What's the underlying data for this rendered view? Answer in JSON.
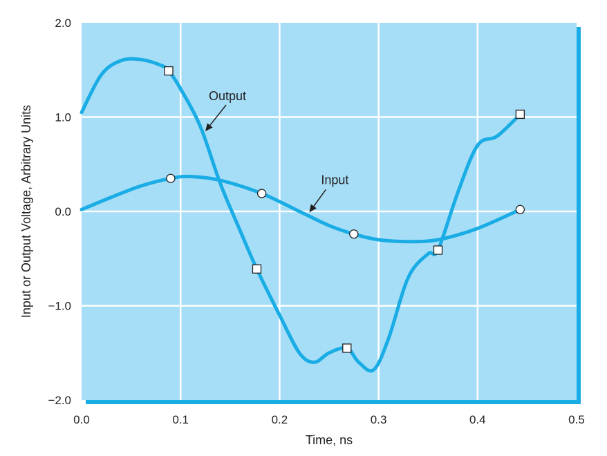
{
  "chart_data": {
    "type": "line",
    "xlabel": "Time, ns",
    "ylabel": "Input or Output Voltage, Arbitrary Units",
    "xlim": [
      0.0,
      0.5
    ],
    "ylim": [
      -2.0,
      2.0
    ],
    "x_ticks": [
      "0.0",
      "0.1",
      "0.2",
      "0.3",
      "0.4",
      "0.5"
    ],
    "y_ticks": [
      "2.0",
      "1.0",
      "0.0",
      "−1.0",
      "−2.0"
    ],
    "grid": true,
    "colors": {
      "plot_background": "#a6def7",
      "line": "#1aace4",
      "grid": "#ffffff",
      "text": "#231f20"
    },
    "series": [
      {
        "name": "Output",
        "marker": "square",
        "curve_x": [
          0.0,
          0.02,
          0.04,
          0.06,
          0.08,
          0.088,
          0.1,
          0.12,
          0.14,
          0.16,
          0.177,
          0.2,
          0.22,
          0.235,
          0.25,
          0.268,
          0.28,
          0.295,
          0.31,
          0.33,
          0.35,
          0.36,
          0.38,
          0.4,
          0.42,
          0.443
        ],
        "curve_y": [
          1.05,
          1.45,
          1.6,
          1.61,
          1.55,
          1.49,
          1.3,
          0.9,
          0.3,
          -0.2,
          -0.61,
          -1.1,
          -1.5,
          -1.6,
          -1.5,
          -1.45,
          -1.6,
          -1.68,
          -1.35,
          -0.7,
          -0.45,
          -0.41,
          0.2,
          0.7,
          0.8,
          1.03
        ],
        "markers_x": [
          0.088,
          0.177,
          0.268,
          0.36,
          0.443
        ],
        "markers_y": [
          1.49,
          -0.61,
          -1.45,
          -0.41,
          1.03
        ]
      },
      {
        "name": "Input",
        "marker": "circle",
        "curve_x": [
          0.0,
          0.03,
          0.06,
          0.09,
          0.11,
          0.14,
          0.182,
          0.22,
          0.25,
          0.275,
          0.3,
          0.33,
          0.36,
          0.4,
          0.443
        ],
        "curve_y": [
          0.02,
          0.15,
          0.27,
          0.35,
          0.37,
          0.33,
          0.19,
          0.0,
          -0.15,
          -0.24,
          -0.3,
          -0.32,
          -0.3,
          -0.18,
          0.02
        ],
        "markers_x": [
          0.09,
          0.182,
          0.275,
          0.443
        ],
        "markers_y": [
          0.35,
          0.19,
          -0.24,
          0.02
        ]
      }
    ],
    "annotations": [
      {
        "text": "Output",
        "series": "Output",
        "point_x": 0.125,
        "point_y": 0.85
      },
      {
        "text": "Input",
        "series": "Input",
        "point_x": 0.23,
        "point_y": -0.01
      }
    ]
  }
}
